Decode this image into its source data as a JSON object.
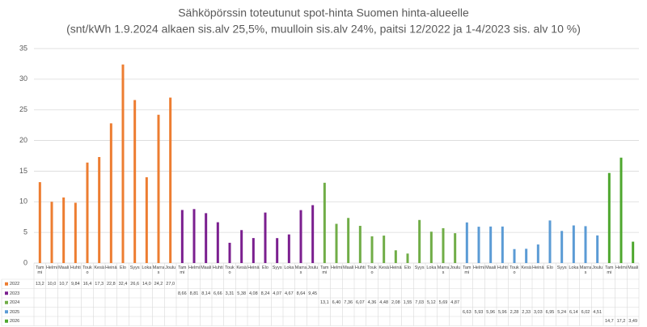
{
  "chart_data": {
    "type": "bar",
    "title": "Sähköpörssin toteutunut spot-hinta Suomen hinta-alueelle",
    "subtitle": "(snt/kWh 1.9.2024 alkaen sis.alv 25,5%, muulloin sis.alv 24%, paitsi 12/2022 ja 1-4/2023 sis. alv 10 %)",
    "categories": [
      "Tammi",
      "Helmi",
      "Maali",
      "Huhti",
      "Touko",
      "Kesä",
      "Heinä",
      "Elo",
      "Syys",
      "Loka",
      "Marras",
      "Joulu",
      "Tammi",
      "Helmi",
      "Maali",
      "Huhti",
      "Touko",
      "Kesä",
      "Heinä",
      "Elo",
      "Syys",
      "Loka",
      "Marras",
      "Joulu",
      "Tammi",
      "Helmi",
      "Maali",
      "Huhti",
      "Touko",
      "Kesä",
      "Heinä",
      "Elo",
      "Syys",
      "Loka",
      "Marras",
      "Joulu",
      "Tammi",
      "Helmi",
      "Maali",
      "Huhti",
      "Touko",
      "Kesä",
      "Heinä",
      "Elo",
      "Syys",
      "Loka",
      "Marras",
      "Joulu",
      "Tammi",
      "Helmi",
      "Maali"
    ],
    "series": [
      {
        "name": "2022",
        "color": "#ed7d31",
        "values": [
          13.2,
          10.0,
          10.7,
          9.84,
          16.4,
          17.3,
          22.8,
          32.4,
          26.6,
          14.0,
          24.2,
          27.0,
          null,
          null,
          null,
          null,
          null,
          null,
          null,
          null,
          null,
          null,
          null,
          null,
          null,
          null,
          null,
          null,
          null,
          null,
          null,
          null,
          null,
          null,
          null,
          null,
          null,
          null,
          null,
          null,
          null,
          null,
          null,
          null,
          null,
          null,
          null,
          null,
          null,
          null,
          null
        ],
        "value_labels": [
          "13,2",
          "10,0",
          "10,7",
          "9,84",
          "16,4",
          "17,3",
          "22,8",
          "32,4",
          "26,6",
          "14,0",
          "24,2",
          "27,0",
          null,
          null,
          null,
          null,
          null,
          null,
          null,
          null,
          null,
          null,
          null,
          null,
          null,
          null,
          null,
          null,
          null,
          null,
          null,
          null,
          null,
          null,
          null,
          null,
          null,
          null,
          null,
          null,
          null,
          null,
          null,
          null,
          null,
          null,
          null,
          null,
          null,
          null,
          null
        ]
      },
      {
        "name": "2023",
        "color": "#7b1f8f",
        "values": [
          null,
          null,
          null,
          null,
          null,
          null,
          null,
          null,
          null,
          null,
          null,
          null,
          8.66,
          8.81,
          8.14,
          6.66,
          3.31,
          5.38,
          4.08,
          8.24,
          4.07,
          4.67,
          8.64,
          9.45,
          null,
          null,
          null,
          null,
          null,
          null,
          null,
          null,
          null,
          null,
          null,
          null,
          null,
          null,
          null,
          null,
          null,
          null,
          null,
          null,
          null,
          null,
          null,
          null,
          null,
          null,
          null
        ],
        "value_labels": [
          null,
          null,
          null,
          null,
          null,
          null,
          null,
          null,
          null,
          null,
          null,
          null,
          "8,66",
          "8,81",
          "8,14",
          "6,66",
          "3,31",
          "5,38",
          "4,08",
          "8,24",
          "4,07",
          "4,67",
          "8,64",
          "9,45",
          null,
          null,
          null,
          null,
          null,
          null,
          null,
          null,
          null,
          null,
          null,
          null,
          null,
          null,
          null,
          null,
          null,
          null,
          null,
          null,
          null,
          null,
          null,
          null,
          null,
          null,
          null
        ]
      },
      {
        "name": "2024",
        "color": "#70ad47",
        "values": [
          null,
          null,
          null,
          null,
          null,
          null,
          null,
          null,
          null,
          null,
          null,
          null,
          null,
          null,
          null,
          null,
          null,
          null,
          null,
          null,
          null,
          null,
          null,
          null,
          13.1,
          6.4,
          7.36,
          6.07,
          4.36,
          4.48,
          2.08,
          1.55,
          7.03,
          5.12,
          5.69,
          4.87,
          null,
          null,
          null,
          null,
          null,
          null,
          null,
          null,
          null,
          null,
          null,
          null,
          null,
          null,
          null
        ],
        "value_labels": [
          null,
          null,
          null,
          null,
          null,
          null,
          null,
          null,
          null,
          null,
          null,
          null,
          null,
          null,
          null,
          null,
          null,
          null,
          null,
          null,
          null,
          null,
          null,
          null,
          "13,1",
          "6,40",
          "7,36",
          "6,07",
          "4,36",
          "4,48",
          "2,08",
          "1,55",
          "7,03",
          "5,12",
          "5,69",
          "4,87",
          null,
          null,
          null,
          null,
          null,
          null,
          null,
          null,
          null,
          null,
          null,
          null,
          null,
          null,
          null
        ]
      },
      {
        "name": "2025",
        "color": "#5b9bd5",
        "values": [
          null,
          null,
          null,
          null,
          null,
          null,
          null,
          null,
          null,
          null,
          null,
          null,
          null,
          null,
          null,
          null,
          null,
          null,
          null,
          null,
          null,
          null,
          null,
          null,
          null,
          null,
          null,
          null,
          null,
          null,
          null,
          null,
          null,
          null,
          null,
          null,
          6.63,
          5.93,
          5.96,
          5.96,
          2.28,
          2.33,
          3.03,
          6.95,
          5.24,
          6.14,
          6.02,
          4.51,
          null,
          null,
          null
        ],
        "value_labels": [
          null,
          null,
          null,
          null,
          null,
          null,
          null,
          null,
          null,
          null,
          null,
          null,
          null,
          null,
          null,
          null,
          null,
          null,
          null,
          null,
          null,
          null,
          null,
          null,
          null,
          null,
          null,
          null,
          null,
          null,
          null,
          null,
          null,
          null,
          null,
          null,
          "6,63",
          "5,93",
          "5,96",
          "5,96",
          "2,28",
          "2,33",
          "3,03",
          "6,95",
          "5,24",
          "6,14",
          "6,02",
          "4,51",
          null,
          null,
          null
        ]
      },
      {
        "name": "2026",
        "color": "#4ea72e",
        "values": [
          null,
          null,
          null,
          null,
          null,
          null,
          null,
          null,
          null,
          null,
          null,
          null,
          null,
          null,
          null,
          null,
          null,
          null,
          null,
          null,
          null,
          null,
          null,
          null,
          null,
          null,
          null,
          null,
          null,
          null,
          null,
          null,
          null,
          null,
          null,
          null,
          null,
          null,
          null,
          null,
          null,
          null,
          null,
          null,
          null,
          null,
          null,
          null,
          14.7,
          17.2,
          3.49
        ],
        "value_labels": [
          null,
          null,
          null,
          null,
          null,
          null,
          null,
          null,
          null,
          null,
          null,
          null,
          null,
          null,
          null,
          null,
          null,
          null,
          null,
          null,
          null,
          null,
          null,
          null,
          null,
          null,
          null,
          null,
          null,
          null,
          null,
          null,
          null,
          null,
          null,
          null,
          null,
          null,
          null,
          null,
          null,
          null,
          null,
          null,
          null,
          null,
          null,
          null,
          "14,7",
          "17,2",
          "3,49"
        ]
      }
    ],
    "ylim": [
      0,
      35
    ],
    "yticks": [
      0,
      5,
      10,
      15,
      20,
      25,
      30,
      35
    ],
    "grid": true
  }
}
